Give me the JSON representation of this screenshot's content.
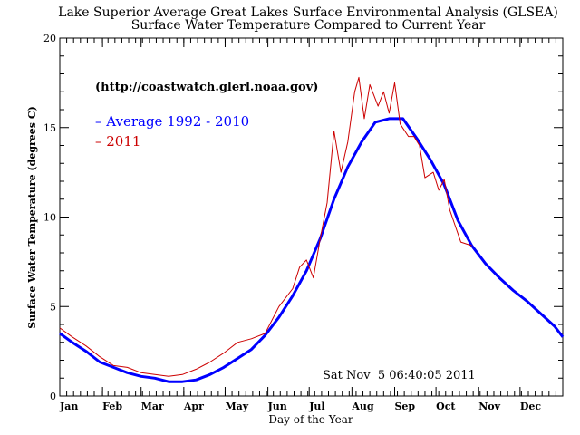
{
  "chart_data": {
    "type": "line",
    "title": "Lake Superior Average Great Lakes Surface Environmental Analysis (GLSEA)",
    "subtitle": "Surface Water Temperature Compared to Current Year",
    "source": "(http://coastwatch.glerl.noaa.gov)",
    "xlabel": "Day of the Year",
    "ylabel": "Surface Water Temperature (degrees C)",
    "timestamp": "Sat Nov  5 06:40:05 2011",
    "xlim": [
      1,
      366
    ],
    "ylim": [
      0,
      20
    ],
    "y_ticks": [
      0,
      5,
      10,
      15,
      20
    ],
    "x_ticks": [
      {
        "label": "Jan",
        "day": 1
      },
      {
        "label": "Feb",
        "day": 32
      },
      {
        "label": "Mar",
        "day": 60
      },
      {
        "label": "Apr",
        "day": 91
      },
      {
        "label": "May",
        "day": 121
      },
      {
        "label": "Jun",
        "day": 152
      },
      {
        "label": "Jul",
        "day": 182
      },
      {
        "label": "Aug",
        "day": 213
      },
      {
        "label": "Sep",
        "day": 244
      },
      {
        "label": "Oct",
        "day": 274
      },
      {
        "label": "Nov",
        "day": 305
      },
      {
        "label": "Dec",
        "day": 335
      }
    ],
    "legend_position": "top-left",
    "series": [
      {
        "name": "Average 1992 - 2010",
        "color": "#0000ff",
        "points": [
          [
            1,
            3.5
          ],
          [
            10,
            3.0
          ],
          [
            20,
            2.5
          ],
          [
            30,
            1.9
          ],
          [
            40,
            1.6
          ],
          [
            50,
            1.3
          ],
          [
            60,
            1.1
          ],
          [
            70,
            1.0
          ],
          [
            80,
            0.8
          ],
          [
            90,
            0.8
          ],
          [
            100,
            0.9
          ],
          [
            110,
            1.2
          ],
          [
            120,
            1.6
          ],
          [
            130,
            2.1
          ],
          [
            140,
            2.6
          ],
          [
            150,
            3.4
          ],
          [
            160,
            4.4
          ],
          [
            170,
            5.6
          ],
          [
            180,
            7.0
          ],
          [
            190,
            8.8
          ],
          [
            200,
            11.0
          ],
          [
            210,
            12.8
          ],
          [
            220,
            14.2
          ],
          [
            230,
            15.3
          ],
          [
            240,
            15.5
          ],
          [
            250,
            15.5
          ],
          [
            260,
            14.4
          ],
          [
            270,
            13.2
          ],
          [
            280,
            11.8
          ],
          [
            290,
            9.8
          ],
          [
            300,
            8.4
          ],
          [
            310,
            7.4
          ],
          [
            320,
            6.6
          ],
          [
            330,
            5.9
          ],
          [
            340,
            5.3
          ],
          [
            350,
            4.6
          ],
          [
            360,
            3.9
          ],
          [
            366,
            3.3
          ]
        ]
      },
      {
        "name": "2011",
        "color": "#cc0000",
        "points": [
          [
            1,
            3.8
          ],
          [
            10,
            3.3
          ],
          [
            20,
            2.8
          ],
          [
            30,
            2.2
          ],
          [
            40,
            1.7
          ],
          [
            50,
            1.6
          ],
          [
            60,
            1.3
          ],
          [
            70,
            1.2
          ],
          [
            80,
            1.1
          ],
          [
            90,
            1.2
          ],
          [
            100,
            1.5
          ],
          [
            110,
            1.9
          ],
          [
            120,
            2.4
          ],
          [
            130,
            3.0
          ],
          [
            140,
            3.2
          ],
          [
            150,
            3.5
          ],
          [
            160,
            5.0
          ],
          [
            170,
            6.0
          ],
          [
            175,
            7.2
          ],
          [
            180,
            7.6
          ],
          [
            185,
            6.6
          ],
          [
            190,
            8.8
          ],
          [
            195,
            10.8
          ],
          [
            200,
            14.8
          ],
          [
            205,
            12.5
          ],
          [
            210,
            14.2
          ],
          [
            215,
            17.0
          ],
          [
            218,
            17.8
          ],
          [
            222,
            15.5
          ],
          [
            226,
            17.4
          ],
          [
            232,
            16.2
          ],
          [
            236,
            17.0
          ],
          [
            240,
            15.8
          ],
          [
            244,
            17.5
          ],
          [
            248,
            15.2
          ],
          [
            254,
            14.5
          ],
          [
            258,
            14.5
          ],
          [
            262,
            14.0
          ],
          [
            266,
            12.2
          ],
          [
            272,
            12.5
          ],
          [
            276,
            11.5
          ],
          [
            280,
            12.1
          ],
          [
            284,
            10.4
          ],
          [
            288,
            9.5
          ],
          [
            292,
            8.6
          ],
          [
            296,
            8.5
          ],
          [
            300,
            8.4
          ]
        ]
      }
    ]
  }
}
